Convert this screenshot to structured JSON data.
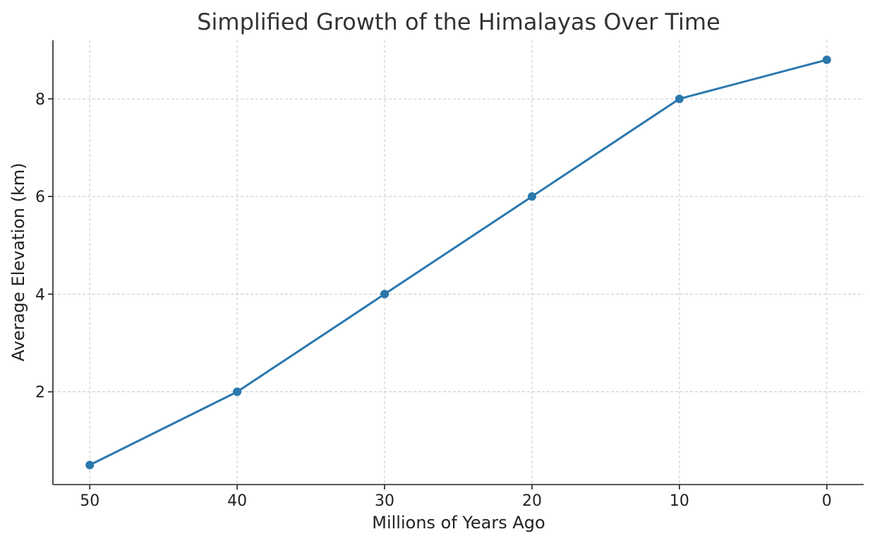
{
  "chart_data": {
    "type": "line",
    "title": "Simplified Growth of the Himalayas Over Time",
    "xlabel": "Millions of Years Ago",
    "ylabel": "Average Elevation (km)",
    "x_reversed": true,
    "xlim": [
      52.5,
      -2.5
    ],
    "ylim": [
      0.1,
      9.2
    ],
    "xticks": [
      50,
      40,
      30,
      20,
      10,
      0
    ],
    "yticks": [
      2,
      4,
      6,
      8
    ],
    "grid": true,
    "line_color": "#2a77ad",
    "x": [
      50,
      40,
      30,
      20,
      10,
      0
    ],
    "series": [
      {
        "values": [
          0.5,
          2,
          4,
          6,
          8,
          8.8
        ]
      }
    ]
  }
}
